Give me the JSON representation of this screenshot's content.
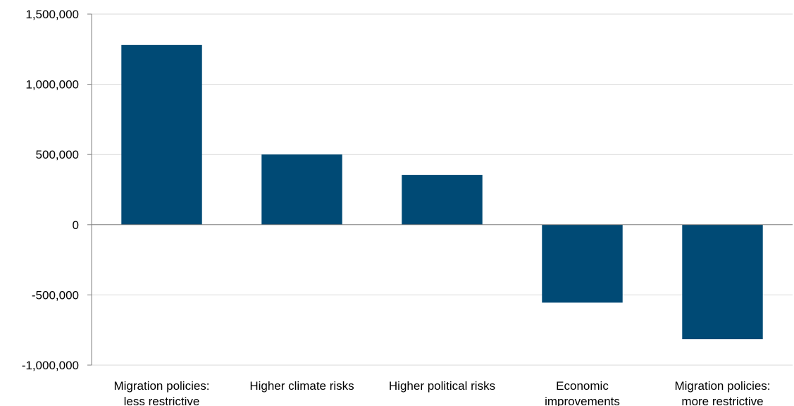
{
  "chart_data": {
    "type": "bar",
    "title": "",
    "xlabel": "",
    "ylabel": "",
    "categories": [
      [
        "Migration policies:",
        "less restrictive"
      ],
      [
        "Higher climate risks"
      ],
      [
        "Higher political risks"
      ],
      [
        "Economic",
        "improvements"
      ],
      [
        "Migration policies:",
        "more restrictive"
      ]
    ],
    "values": [
      1280000,
      500000,
      355000,
      -555000,
      -815000
    ],
    "ylim": [
      -1000000,
      1500000
    ],
    "yticks": [
      -1000000,
      -500000,
      0,
      500000,
      1000000,
      1500000
    ],
    "ytick_labels": [
      "-1,000,000",
      "-500,000",
      "0",
      "500,000",
      "1,000,000",
      "1,500,000"
    ],
    "grid": true,
    "legend": "none",
    "bar_color": "#004a75",
    "grid_color": "#d9d9d9",
    "axis_color": "#7f7f7f"
  }
}
